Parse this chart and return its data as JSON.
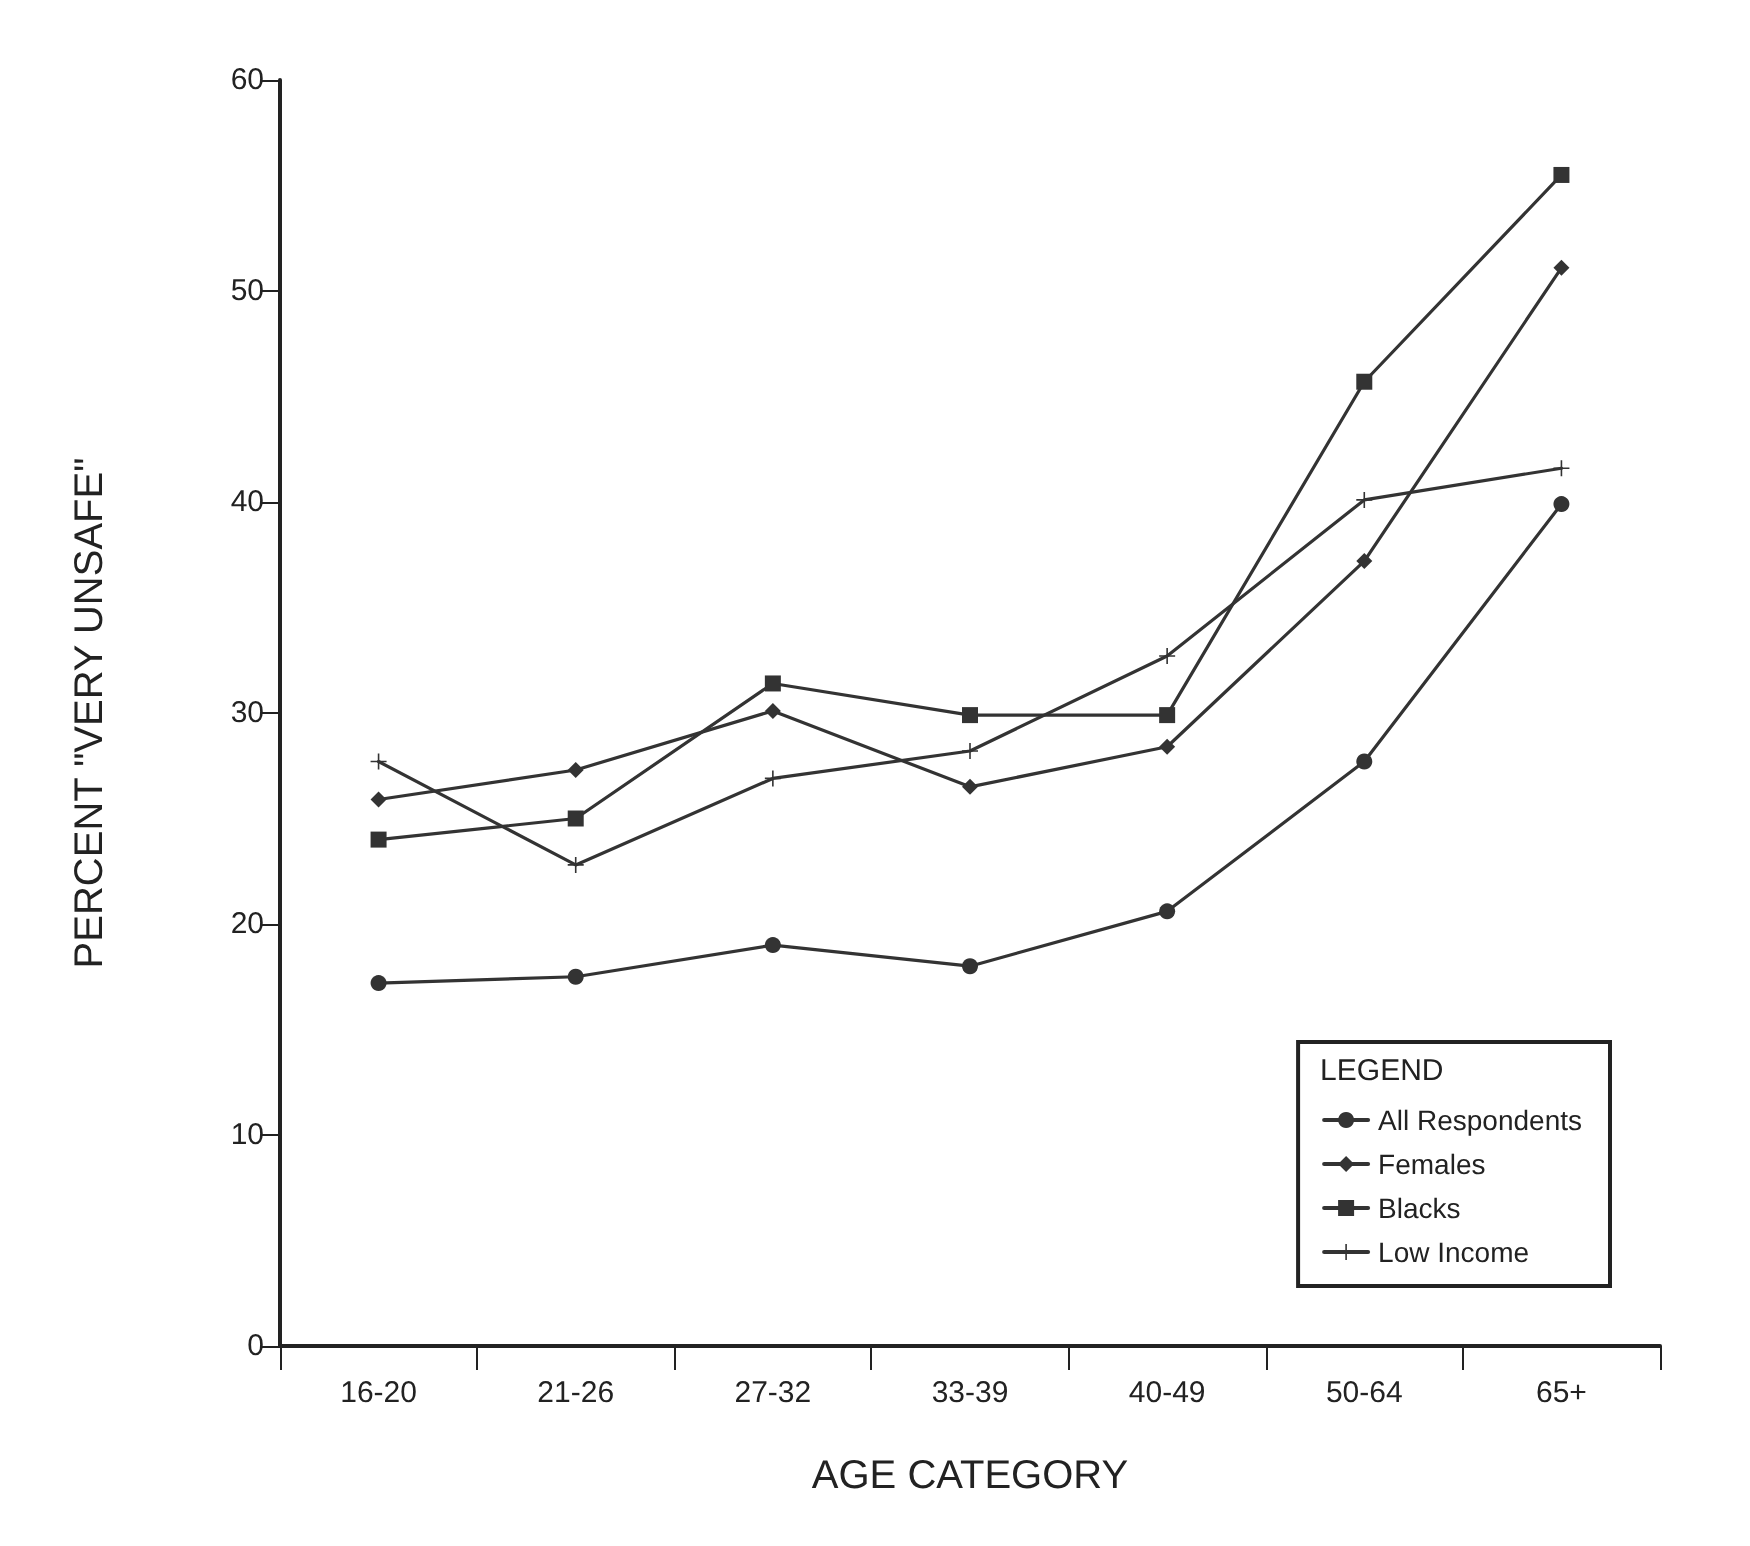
{
  "chart_data": {
    "type": "line",
    "xlabel": "AGE CATEGORY",
    "ylabel": "PERCENT \"VERY UNSAFE\"",
    "legend_title": "LEGEND",
    "categories": [
      "16-20",
      "21-26",
      "27-32",
      "33-39",
      "40-49",
      "50-64",
      "65+"
    ],
    "series": [
      {
        "name": "All Respondents",
        "color": "#333333",
        "marker": "circle",
        "values": [
          17.2,
          17.5,
          19,
          18,
          20.6,
          27.7,
          39.9
        ]
      },
      {
        "name": "Females",
        "color": "#333333",
        "marker": "diamond",
        "values": [
          25.9,
          27.3,
          30.1,
          26.5,
          28.4,
          37.2,
          51.1
        ]
      },
      {
        "name": "Blacks",
        "color": "#333333",
        "marker": "square",
        "values": [
          24,
          25,
          31.4,
          29.9,
          29.9,
          45.7,
          55.5
        ]
      },
      {
        "name": "Low Income",
        "color": "#333333",
        "marker": "cross",
        "values": [
          27.7,
          22.8,
          26.9,
          28.2,
          32.7,
          40.1,
          41.6
        ]
      }
    ],
    "ylim": [
      0,
      60
    ],
    "yticks": [
      0,
      10,
      20,
      30,
      40,
      50,
      60
    ],
    "grid": false,
    "legend": "bottom right",
    "line_style": "solid"
  }
}
